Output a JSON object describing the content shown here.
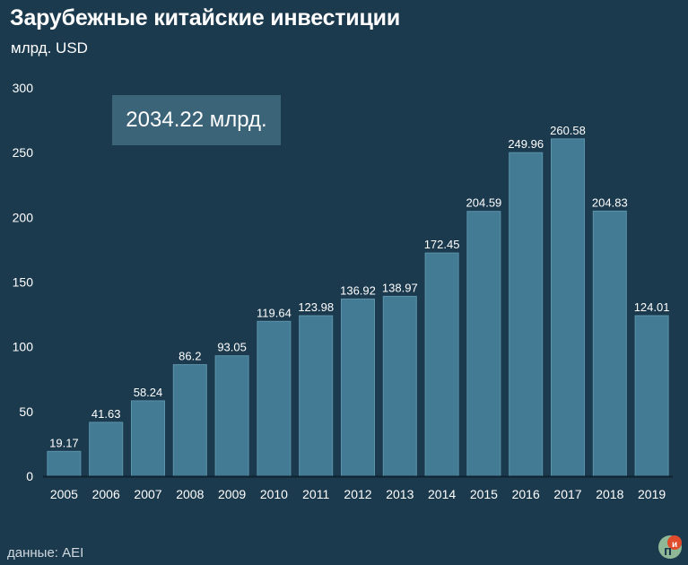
{
  "title": "Зарубежные китайские инвестиции",
  "subtitle": "млрд. USD",
  "callout": "2034.22 млрд.",
  "source": "данные: AEI",
  "colors": {
    "background": "#1c3a4e",
    "bar": "#437b95",
    "bar_edge": "#5b93ab",
    "axis": "#0e2230",
    "text": "#ffffff"
  },
  "chart_data": {
    "type": "bar",
    "categories": [
      "2005",
      "2006",
      "2007",
      "2008",
      "2009",
      "2010",
      "2011",
      "2012",
      "2013",
      "2014",
      "2015",
      "2016",
      "2017",
      "2018",
      "2019"
    ],
    "values": [
      19.17,
      41.63,
      58.24,
      86.2,
      93.05,
      119.64,
      123.98,
      136.92,
      138.97,
      172.45,
      204.59,
      249.96,
      260.58,
      204.83,
      124.01
    ],
    "value_labels": [
      "19.17",
      "41.63",
      "58.24",
      "86.2",
      "93.05",
      "119.64",
      "123.98",
      "136.92",
      "138.97",
      "172.45",
      "204.59",
      "249.96",
      "260.58",
      "204.83",
      "124.01"
    ],
    "yticks": [
      "0",
      "50",
      "100",
      "150",
      "200",
      "250",
      "300"
    ],
    "ylim": [
      0,
      300
    ],
    "grid": false,
    "legend": "none"
  }
}
